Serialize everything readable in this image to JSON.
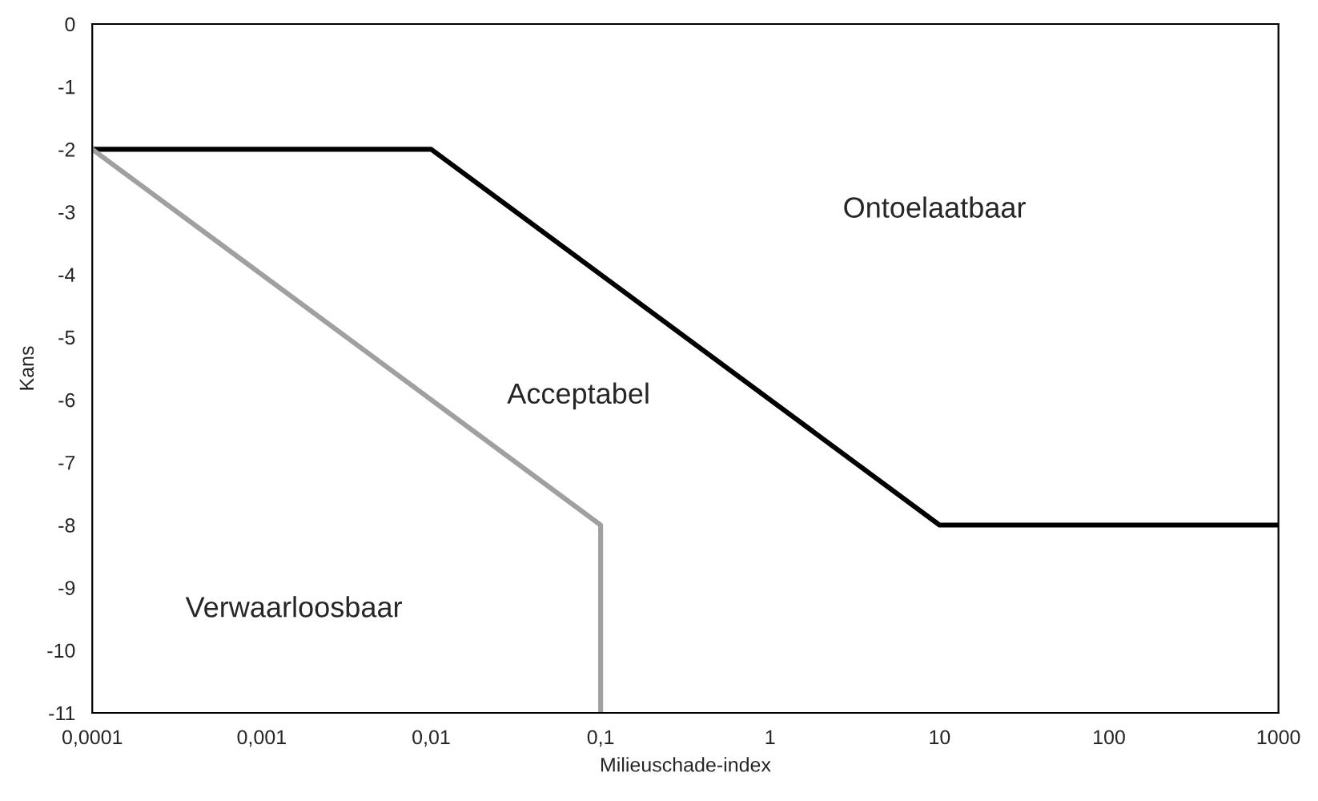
{
  "chart_data": {
    "type": "line",
    "xlabel": "Milieuschade-index",
    "ylabel": "Kans",
    "log": "x",
    "xlim": [
      0.0001,
      1000
    ],
    "ylim": [
      -11,
      0
    ],
    "xticks": [
      {
        "value": 0.0001,
        "label": "0,0001"
      },
      {
        "value": 0.001,
        "label": "0,001"
      },
      {
        "value": 0.01,
        "label": "0,01"
      },
      {
        "value": 0.1,
        "label": "0,1"
      },
      1,
      10,
      100,
      1000
    ],
    "yticks": [
      0,
      -1,
      -2,
      -3,
      -4,
      -5,
      -6,
      -7,
      -8,
      -9,
      -10,
      -11
    ],
    "grid": false,
    "marker": "none",
    "line_style": "solid",
    "series": [
      {
        "color": "#000000",
        "x": [
          0.0001,
          0.01,
          10,
          1000
        ],
        "values": [
          -2,
          -2,
          -8,
          -8
        ]
      },
      {
        "color": "#a0a0a0",
        "x": [
          0.0001,
          0.1,
          0.1
        ],
        "values": [
          -2,
          -8,
          -11
        ]
      }
    ],
    "annotations": [
      "Ontoelaatbaar",
      "Acceptabel",
      "Verwaarloosbaar"
    ]
  }
}
